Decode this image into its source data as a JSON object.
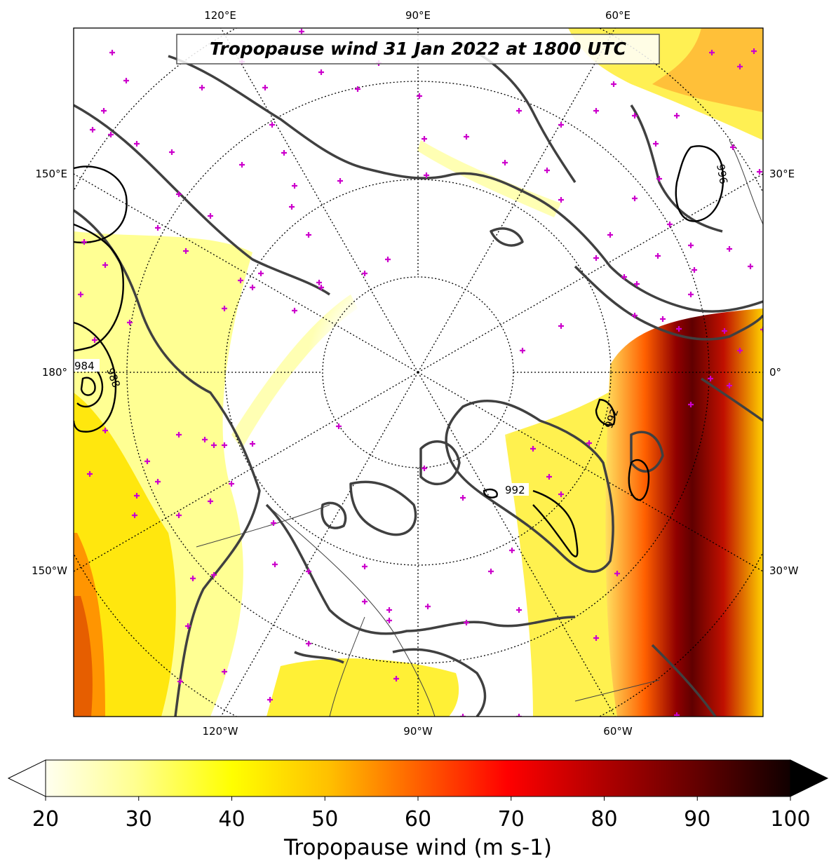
{
  "title": "Tropopause wind 31 Jan 2022 at 1800 UTC",
  "lon_labels_top": [
    "120°E",
    "90°E",
    "60°E"
  ],
  "lon_labels_bottom": [
    "120°W",
    "90°W",
    "60°W"
  ],
  "lon_labels_left": [
    "150°E",
    "180°",
    "150°W"
  ],
  "lon_labels_right": [
    "30°E",
    "0°",
    "30°W"
  ],
  "contour_labels": [
    "984",
    "988",
    "992",
    "992",
    "996"
  ],
  "colorbar": {
    "label": "Tropopause wind (m s-1)",
    "ticks": [
      "20",
      "30",
      "40",
      "50",
      "60",
      "70",
      "80",
      "90",
      "100"
    ],
    "min": 20,
    "max": 100,
    "extend": "both",
    "colormap": "hot_r"
  },
  "colors": {
    "coastline": "#404040",
    "station_marker": "#cc00cc",
    "contour": "#000000"
  }
}
